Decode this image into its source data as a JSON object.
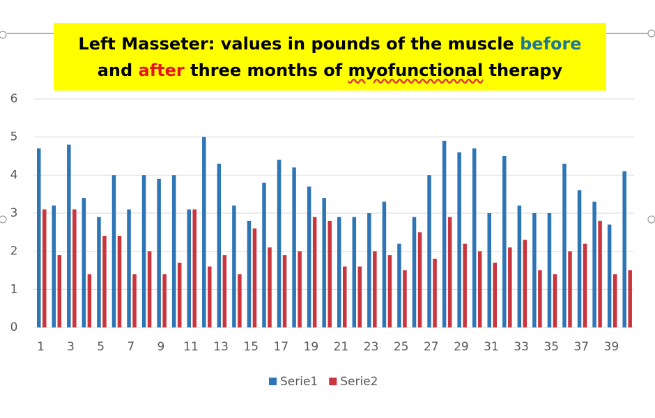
{
  "chart_data": {
    "type": "bar",
    "title": [
      [
        {
          "text": "Left Masseter: values in pounds of the muscle",
          "color": "#000000"
        },
        {
          "text": "before",
          "color": "#1f7896"
        }
      ],
      [
        {
          "text": "and",
          "color": "#000000"
        },
        {
          "text": "after",
          "color": "#e8141c"
        },
        {
          "text": "three months of",
          "color": "#000000"
        },
        {
          "text": "myofunctional",
          "color": "#000000",
          "underline": true
        },
        {
          "text": "therapy",
          "color": "#000000"
        }
      ]
    ],
    "categories": [
      "1",
      null,
      "3",
      null,
      "5",
      null,
      "7",
      null,
      "9",
      null,
      "11",
      null,
      "13",
      null,
      "15",
      null,
      "17",
      null,
      "19",
      null,
      "21",
      null,
      "23",
      null,
      "25",
      null,
      "27",
      null,
      "29",
      null,
      "31",
      null,
      "33",
      null,
      "35",
      null,
      "37",
      null,
      "39",
      null
    ],
    "series": [
      {
        "name": "Serie1",
        "color": "#2e75b6",
        "values": [
          4.7,
          3.2,
          4.8,
          3.4,
          2.9,
          4.0,
          3.1,
          4.0,
          3.9,
          4.0,
          3.1,
          5.0,
          4.3,
          3.2,
          2.8,
          3.8,
          4.4,
          4.2,
          3.7,
          3.4,
          2.9,
          2.9,
          3.0,
          3.3,
          2.2,
          2.9,
          4.0,
          4.9,
          4.6,
          4.7,
          3.0,
          4.5,
          3.2,
          3.0,
          3.0,
          4.3,
          3.6,
          3.3,
          2.7,
          4.1
        ]
      },
      {
        "name": "Serie2",
        "color": "#c9343d",
        "values": [
          3.1,
          1.9,
          3.1,
          1.4,
          2.4,
          2.4,
          1.4,
          2.0,
          1.4,
          1.7,
          3.1,
          1.6,
          1.9,
          1.4,
          2.6,
          2.1,
          1.9,
          2.0,
          2.9,
          2.8,
          1.6,
          1.6,
          2.0,
          1.9,
          1.5,
          2.5,
          1.8,
          2.9,
          2.2,
          2.0,
          1.7,
          2.1,
          2.3,
          1.5,
          1.4,
          2.0,
          2.2,
          2.8,
          1.4,
          1.5
        ]
      }
    ],
    "ylim": [
      0,
      6
    ],
    "yticks": [
      0,
      1,
      2,
      3,
      4,
      5,
      6
    ],
    "grid": true,
    "legend": "bottom"
  }
}
